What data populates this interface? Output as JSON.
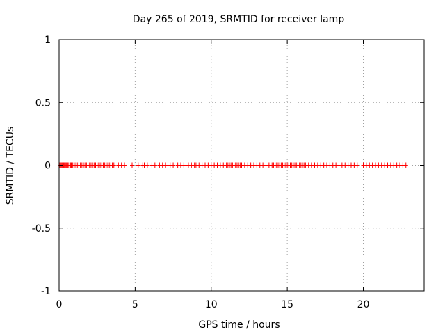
{
  "chart_data": {
    "type": "scatter",
    "title": "Day 265 of 2019, SRMTID for receiver lamp",
    "xlabel": "GPS time / hours",
    "ylabel": "SRMTID / TECUs",
    "xlim": [
      0,
      24
    ],
    "ylim": [
      -1,
      1
    ],
    "xticks": [
      0,
      5,
      10,
      15,
      20
    ],
    "xtick_labels": [
      "0",
      "5",
      "10",
      "15",
      "20"
    ],
    "yticks": [
      1,
      0.5,
      0,
      -0.5,
      -1
    ],
    "ytick_labels": [
      "1",
      "0.5",
      "0",
      "-0.5",
      "-1"
    ],
    "grid": true,
    "marker": "+",
    "series": [
      {
        "name": "SRMTID",
        "color": "#ff0000",
        "x": [
          0.05,
          0.1,
          0.15,
          0.2,
          0.25,
          0.3,
          0.35,
          0.4,
          0.45,
          0.5,
          0.55,
          0.6,
          0.7,
          0.75,
          0.8,
          0.9,
          1.0,
          1.1,
          1.2,
          1.3,
          1.4,
          1.5,
          1.6,
          1.7,
          1.8,
          1.9,
          2.0,
          2.1,
          2.2,
          2.3,
          2.4,
          2.5,
          2.6,
          2.7,
          2.8,
          2.9,
          3.0,
          3.1,
          3.2,
          3.3,
          3.4,
          3.5,
          3.6,
          3.9,
          4.1,
          4.3,
          4.8,
          5.2,
          5.5,
          5.6,
          5.8,
          6.1,
          6.3,
          6.6,
          6.8,
          7.0,
          7.3,
          7.5,
          7.8,
          8.0,
          8.2,
          8.5,
          8.7,
          8.9,
          9.0,
          9.2,
          9.4,
          9.6,
          9.8,
          10.0,
          10.2,
          10.4,
          10.6,
          10.8,
          11.0,
          11.1,
          11.2,
          11.3,
          11.4,
          11.5,
          11.6,
          11.7,
          11.8,
          11.9,
          12.0,
          12.2,
          12.4,
          12.6,
          12.8,
          13.0,
          13.2,
          13.4,
          13.6,
          13.8,
          14.0,
          14.1,
          14.2,
          14.3,
          14.4,
          14.5,
          14.6,
          14.7,
          14.8,
          14.9,
          15.0,
          15.1,
          15.2,
          15.3,
          15.4,
          15.5,
          15.6,
          15.7,
          15.8,
          15.9,
          16.0,
          16.1,
          16.2,
          16.4,
          16.6,
          16.8,
          17.0,
          17.2,
          17.4,
          17.6,
          17.8,
          18.0,
          18.2,
          18.4,
          18.6,
          18.8,
          19.0,
          19.2,
          19.4,
          19.6,
          20.0,
          20.2,
          20.4,
          20.6,
          20.8,
          21.0,
          21.2,
          21.4,
          21.6,
          21.8,
          22.0,
          22.2,
          22.4,
          22.6,
          22.8
        ],
        "y": [
          0,
          0,
          0,
          0,
          0,
          0,
          0,
          0,
          0,
          0,
          0,
          0,
          0,
          0,
          0,
          0,
          0,
          0,
          0,
          0,
          0,
          0,
          0,
          0,
          0,
          0,
          0,
          0,
          0,
          0,
          0,
          0,
          0,
          0,
          0,
          0,
          0,
          0,
          0,
          0,
          0,
          0,
          0,
          0,
          0,
          0,
          0,
          0,
          0,
          0,
          0,
          0,
          0,
          0,
          0,
          0,
          0,
          0,
          0,
          0,
          0,
          0,
          0,
          0,
          0,
          0,
          0,
          0,
          0,
          0,
          0,
          0,
          0,
          0,
          0,
          0,
          0,
          0,
          0,
          0,
          0,
          0,
          0,
          0,
          0,
          0,
          0,
          0,
          0,
          0,
          0,
          0,
          0,
          0,
          0,
          0,
          0,
          0,
          0,
          0,
          0,
          0,
          0,
          0,
          0,
          0,
          0,
          0,
          0,
          0,
          0,
          0,
          0,
          0,
          0,
          0,
          0,
          0,
          0,
          0,
          0,
          0,
          0,
          0,
          0,
          0,
          0,
          0,
          0,
          0,
          0,
          0,
          0,
          0,
          0,
          0,
          0,
          0,
          0,
          0,
          0,
          0,
          0,
          0,
          0,
          0,
          0,
          0,
          0
        ]
      }
    ]
  }
}
